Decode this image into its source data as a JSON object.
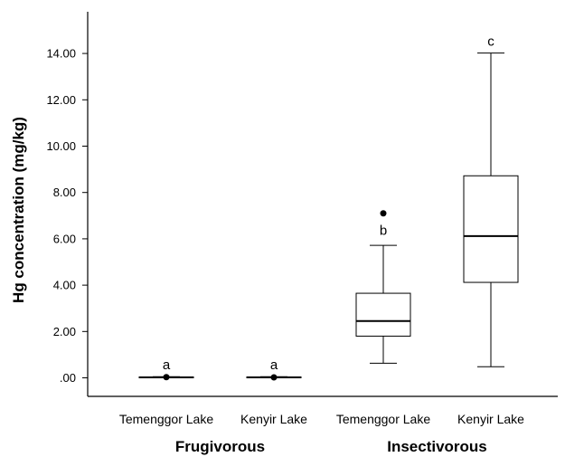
{
  "chart_data": {
    "type": "box",
    "ylabel": "Hg concentration (mg/kg)",
    "ylim": [
      -0.8,
      15.8
    ],
    "yticks": [
      0,
      2,
      4,
      6,
      8,
      10,
      12,
      14
    ],
    "ytick_labels": [
      ".00",
      "2.00",
      "4.00",
      "6.00",
      "8.00",
      "10.00",
      "12.00",
      "14.00"
    ],
    "categories": [
      "Temenggor Lake",
      "Kenyir Lake",
      "Temenggor Lake",
      "Kenyir Lake"
    ],
    "groups": [
      {
        "label": "Frugivorous",
        "categories": [
          0,
          1
        ]
      },
      {
        "label": "Insectivorous",
        "categories": [
          2,
          3
        ]
      }
    ],
    "boxes": [
      {
        "category": "Temenggor Lake",
        "group": "Frugivorous",
        "min": 0.0,
        "q1": 0.0,
        "median": 0.02,
        "q3": 0.04,
        "max": 0.05,
        "outliers": [
          0.03
        ],
        "sig": "a"
      },
      {
        "category": "Kenyir Lake",
        "group": "Frugivorous",
        "min": 0.0,
        "q1": 0.0,
        "median": 0.02,
        "q3": 0.04,
        "max": 0.05,
        "outliers": [
          0.02
        ],
        "sig": "a"
      },
      {
        "category": "Temenggor Lake",
        "group": "Insectivorous",
        "min": 0.63,
        "q1": 1.8,
        "median": 2.45,
        "q3": 3.65,
        "max": 5.72,
        "outliers": [
          7.1
        ],
        "sig": "b"
      },
      {
        "category": "Kenyir Lake",
        "group": "Insectivorous",
        "min": 0.48,
        "q1": 4.12,
        "median": 6.12,
        "q3": 8.72,
        "max": 14.02,
        "outliers": [],
        "sig": "c"
      }
    ]
  }
}
